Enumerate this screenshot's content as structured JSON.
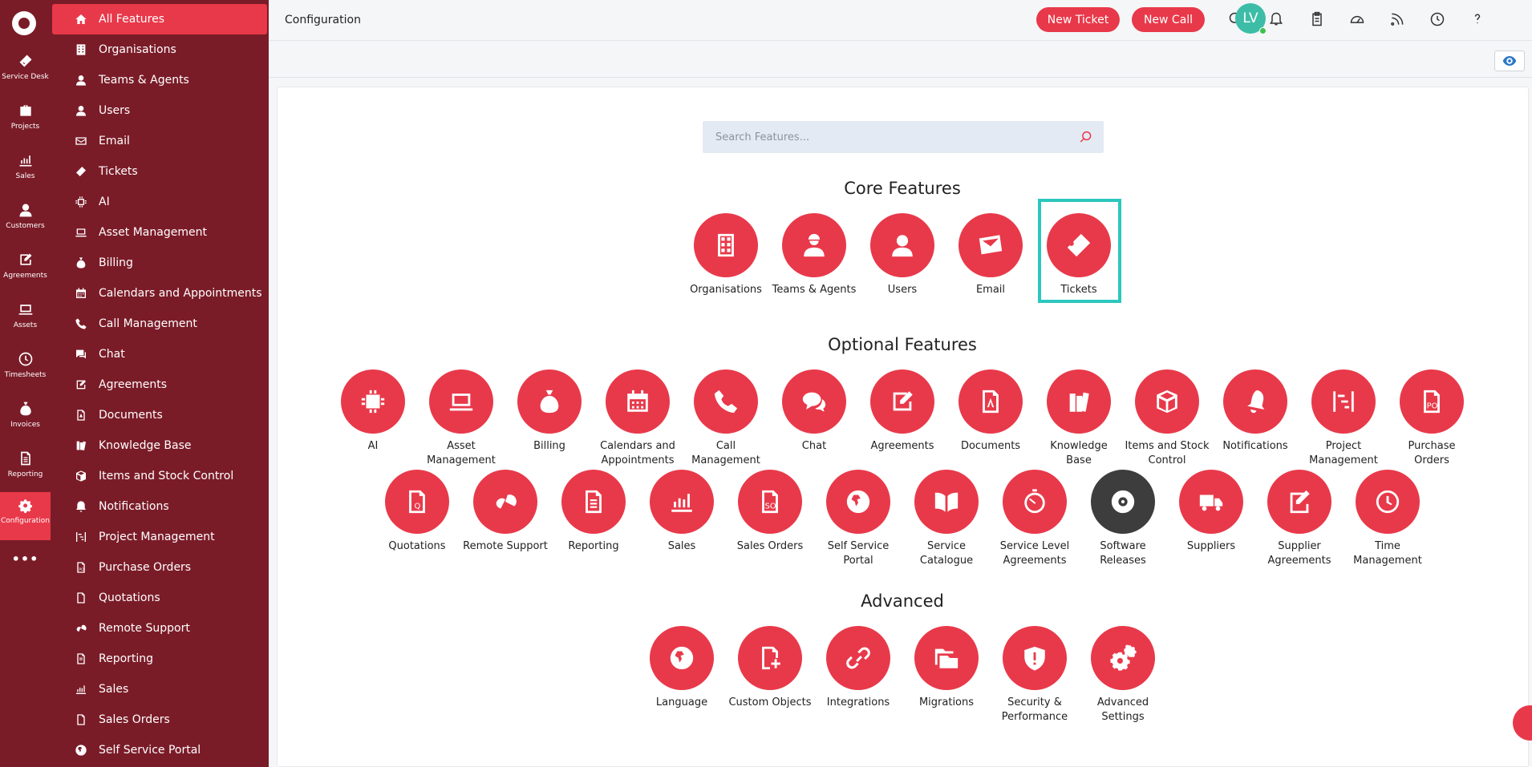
{
  "rail": {
    "items": [
      {
        "label": "Service Desk",
        "icon": "ticket-icon"
      },
      {
        "label": "Projects",
        "icon": "briefcase-icon"
      },
      {
        "label": "Sales",
        "icon": "chart-icon"
      },
      {
        "label": "Customers",
        "icon": "user-icon"
      },
      {
        "label": "Agreements",
        "icon": "edit-icon"
      },
      {
        "label": "Assets",
        "icon": "laptop-icon"
      },
      {
        "label": "Timesheets",
        "icon": "clock-icon"
      },
      {
        "label": "Invoices",
        "icon": "money-bag-icon"
      },
      {
        "label": "Reporting",
        "icon": "report-icon"
      },
      {
        "label": "Configuration",
        "icon": "gears-icon"
      }
    ],
    "more": "•••"
  },
  "menu": {
    "items": [
      "All Features",
      "Organisations",
      "Teams & Agents",
      "Users",
      "Email",
      "Tickets",
      "AI",
      "Asset Management",
      "Billing",
      "Calendars and Appointments",
      "Call Management",
      "Chat",
      "Agreements",
      "Documents",
      "Knowledge Base",
      "Items and Stock Control",
      "Notifications",
      "Project Management",
      "Purchase Orders",
      "Quotations",
      "Remote Support",
      "Reporting",
      "Sales",
      "Sales Orders",
      "Self Service Portal"
    ]
  },
  "header": {
    "title": "Configuration",
    "new_ticket": "New Ticket",
    "new_call": "New Call",
    "avatar": "LV"
  },
  "search": {
    "placeholder": "Search Features..."
  },
  "sections": {
    "core": "Core Features",
    "optional": "Optional Features",
    "advanced": "Advanced"
  },
  "core_features": [
    "Organisations",
    "Teams & Agents",
    "Users",
    "Email",
    "Tickets"
  ],
  "optional_row1": [
    "AI",
    "Asset Management",
    "Billing",
    "Calendars and Appointments",
    "Call Management",
    "Chat",
    "Agreements",
    "Documents",
    "Knowledge Base",
    "Items and Stock Control",
    "Notifications",
    "Project Management",
    "Purchase Orders"
  ],
  "optional_row2": [
    "Quotations",
    "Remote Support",
    "Reporting",
    "Sales",
    "Sales Orders",
    "Self Service Portal",
    "Service Catalogue",
    "Service Level Agreements",
    "Software Releases",
    "Suppliers",
    "Supplier Agreements",
    "Time Management"
  ],
  "advanced_features": [
    "Language",
    "Custom Objects",
    "Integrations",
    "Migrations",
    "Security & Performance",
    "Advanced Settings"
  ],
  "colors": {
    "accent": "#e8394a",
    "sidebar": "#7a1c28",
    "selected": "#2cc7be",
    "dark_icon": "#3d3d3d"
  }
}
